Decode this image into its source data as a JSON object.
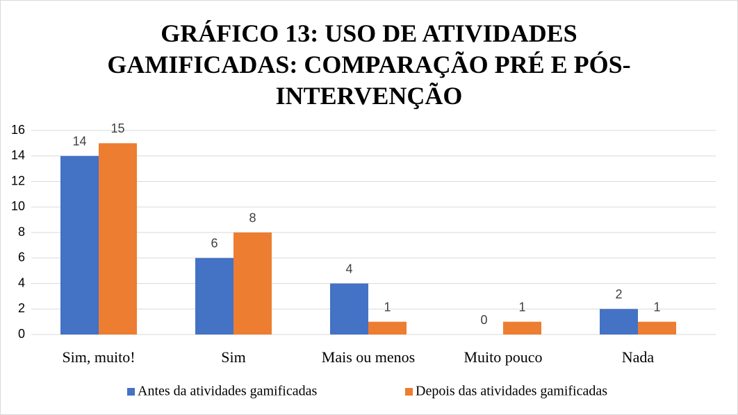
{
  "chart_data": {
    "type": "bar",
    "title": "GRÁFICO 13: USO DE ATIVIDADES GAMIFICADAS: COMPARAÇÃO PRÉ E PÓS-INTERVENÇÃO",
    "categories": [
      "Sim, muito!",
      "Sim",
      "Mais ou menos",
      "Muito pouco",
      "Nada"
    ],
    "series": [
      {
        "name": "Antes da atividades gamificadas",
        "color": "#4472c4",
        "values": [
          14,
          6,
          4,
          0,
          2
        ]
      },
      {
        "name": "Depois das atividades gamificadas",
        "color": "#ed7d31",
        "values": [
          15,
          8,
          1,
          1,
          1
        ]
      }
    ],
    "ylim": [
      0,
      16
    ],
    "yticks": [
      0,
      2,
      4,
      6,
      8,
      10,
      12,
      14,
      16
    ],
    "grid": true,
    "legend": "bottom"
  }
}
